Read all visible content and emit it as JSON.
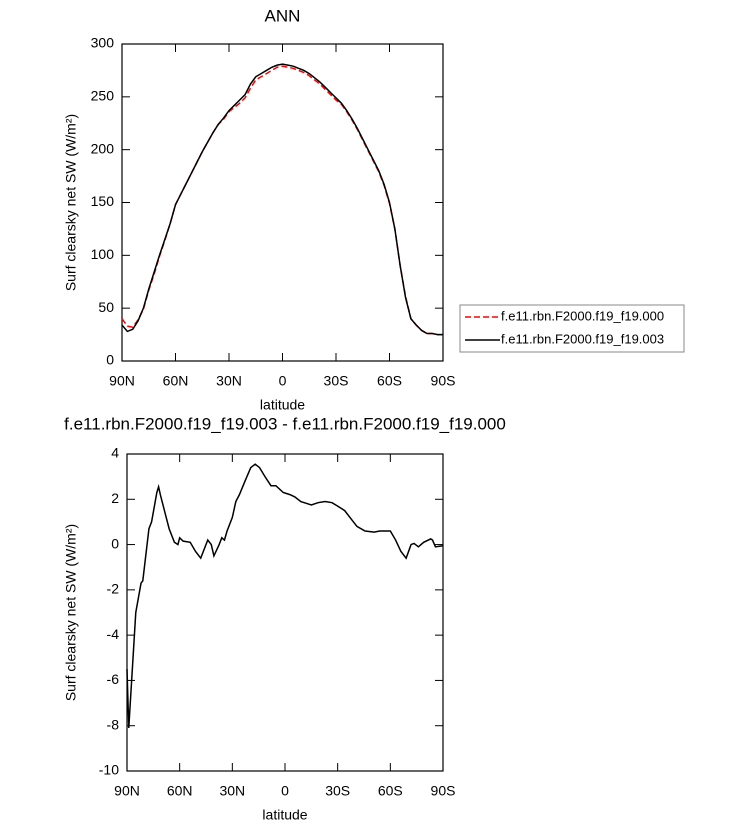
{
  "chart_data": [
    {
      "type": "line",
      "title": "ANN",
      "xlabel": "latitude",
      "ylabel": "Surf clearsky net SW (W/m²)",
      "x": [
        90,
        87,
        84,
        81,
        78,
        75,
        72,
        69,
        66,
        63,
        60,
        57,
        54,
        51,
        48,
        45,
        42,
        39,
        36,
        33,
        30,
        27,
        24,
        21,
        18,
        15,
        12,
        9,
        6,
        3,
        0,
        -3,
        -6,
        -9,
        -12,
        -15,
        -18,
        -21,
        -24,
        -27,
        -30,
        -33,
        -36,
        -39,
        -42,
        -45,
        -48,
        -51,
        -54,
        -57,
        -60,
        -63,
        -66,
        -69,
        -72,
        -75,
        -78,
        -81,
        -84,
        -87,
        -90
      ],
      "series": [
        {
          "name": "f.e11.rbn.F2000.f19_f19.000",
          "color": "#ff0000",
          "line_style": "dashed",
          "values": [
            40,
            33,
            32,
            39,
            49,
            67,
            82,
            99,
            114,
            130,
            148,
            158,
            168,
            178,
            188,
            198,
            207,
            216,
            224,
            229,
            236,
            240,
            244,
            249,
            258,
            266,
            269,
            272,
            275,
            278,
            279,
            278,
            277,
            275,
            273,
            270,
            266,
            262,
            257,
            252,
            247,
            243,
            236,
            228,
            219,
            209,
            199,
            189,
            179,
            166,
            149,
            125,
            90,
            61,
            40,
            34,
            29,
            26,
            26,
            25,
            25
          ]
        },
        {
          "name": "f.e11.rbn.F2000.f19_f19.003",
          "color": "#000000",
          "line_style": "solid",
          "values": [
            34,
            28,
            30,
            38,
            50,
            68,
            84,
            100,
            115,
            130,
            148,
            158,
            168,
            178,
            188,
            198,
            207,
            216,
            224,
            230,
            237,
            242,
            247,
            252,
            262,
            269,
            272,
            275,
            278,
            280,
            281,
            280,
            279,
            277,
            275,
            272,
            268,
            264,
            259,
            254,
            249,
            244,
            237,
            229,
            220,
            210,
            200,
            190,
            180,
            167,
            150,
            125,
            90,
            60,
            40,
            34,
            29,
            26,
            26,
            25,
            25
          ]
        }
      ],
      "xlim": [
        90,
        -90
      ],
      "xticks": [
        {
          "value": 90,
          "label": "90N"
        },
        {
          "value": 60,
          "label": "60N"
        },
        {
          "value": 30,
          "label": "30N"
        },
        0,
        {
          "value": -30,
          "label": "30S"
        },
        {
          "value": -60,
          "label": "60S"
        },
        {
          "value": -90,
          "label": "90S"
        }
      ],
      "ylim": [
        0,
        300
      ],
      "yticks": [
        0,
        50,
        100,
        150,
        200,
        250,
        300
      ],
      "legend": "right"
    },
    {
      "type": "line",
      "title": "f.e11.rbn.F2000.f19_f19.003 - f.e11.rbn.F2000.f19_f19.000",
      "xlabel": "latitude",
      "ylabel": "Surf clearsky net SW (W/m²)",
      "x": [
        90,
        89,
        85,
        82,
        81,
        77.5,
        76,
        73,
        72,
        71,
        68,
        66,
        63,
        61,
        60,
        58,
        54,
        51,
        48,
        44,
        42,
        40.5,
        37.5,
        36,
        34.5,
        33,
        30,
        28,
        26,
        22.8,
        19.5,
        17,
        14.5,
        11.4,
        8,
        5.2,
        1,
        -3,
        -5.7,
        -9,
        -13,
        -15,
        -18.8,
        -22.8,
        -26.8,
        -30,
        -34,
        -37,
        -41,
        -45.6,
        -50.8,
        -54,
        -57.5,
        -60,
        -63,
        -66,
        -69,
        -71.8,
        -73.5,
        -76,
        -79,
        -83,
        -84,
        -85.7,
        -90
      ],
      "values": [
        -5.5,
        -8.1,
        -3,
        -1.7,
        -1.6,
        0.7,
        1,
        2.3,
        2.55,
        2.2,
        1.3,
        0.7,
        0.1,
        0,
        0.3,
        0.15,
        0.1,
        -0.3,
        -0.6,
        0.2,
        0,
        -0.5,
        0,
        0.3,
        0.2,
        0.6,
        1.2,
        1.9,
        2.2,
        2.8,
        3.4,
        3.55,
        3.4,
        3,
        2.6,
        2.6,
        2.3,
        2.2,
        2.1,
        1.9,
        1.8,
        1.75,
        1.85,
        1.9,
        1.85,
        1.7,
        1.5,
        1.2,
        0.8,
        0.6,
        0.55,
        0.6,
        0.6,
        0.6,
        0.2,
        -0.3,
        -0.6,
        0,
        0.05,
        -0.1,
        0.1,
        0.25,
        0.2,
        -0.1,
        -0.05
      ],
      "color": "#000000",
      "xlim": [
        90,
        -90
      ],
      "xticks": [
        {
          "value": 90,
          "label": "90N"
        },
        {
          "value": 60,
          "label": "60N"
        },
        {
          "value": 30,
          "label": "30N"
        },
        0,
        {
          "value": -30,
          "label": "30S"
        },
        {
          "value": -60,
          "label": "60S"
        },
        {
          "value": -90,
          "label": "90S"
        }
      ],
      "ylim": [
        -10,
        4
      ],
      "yticks": [
        -10,
        -8,
        -6,
        -4,
        -2,
        0,
        2,
        4
      ]
    }
  ]
}
